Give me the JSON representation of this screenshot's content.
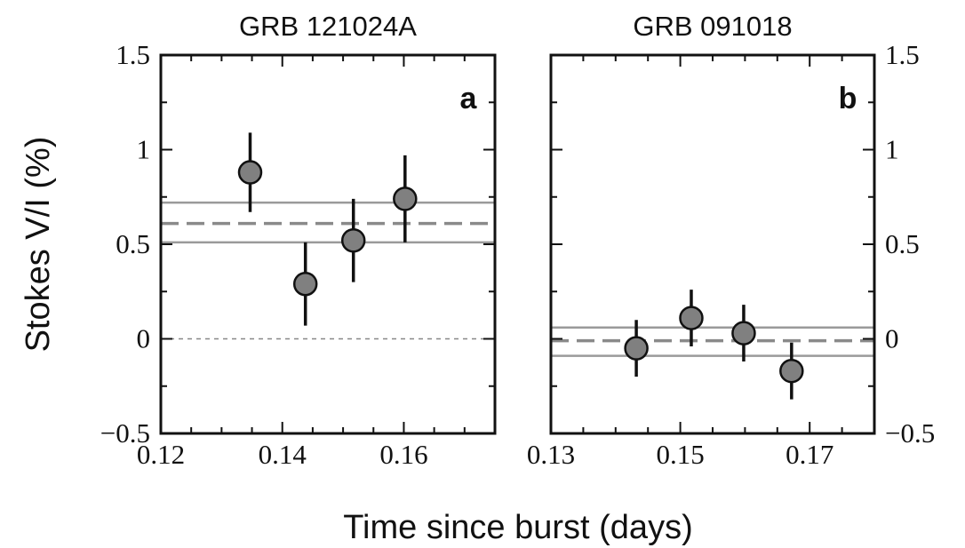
{
  "colors": {
    "marker_fill": "#808080",
    "reference_line": "#9a9a9a",
    "mean_line": "#8a8a8a",
    "zero_line": "#888888",
    "axes": "#111111"
  },
  "ylabel": "Stokes V/I (%)",
  "xlabel": "Time since burst (days)",
  "chart_data": [
    {
      "type": "scatter",
      "title": "GRB 121024A",
      "panel_label": "a",
      "xlim": [
        0.12,
        0.175
      ],
      "ylim": [
        -0.5,
        1.5
      ],
      "x_ticks": [
        "0.12",
        "0.14",
        "0.16"
      ],
      "x_tick_values": [
        0.12,
        0.14,
        0.16
      ],
      "x_minor_ticks": [
        0.125,
        0.13,
        0.135,
        0.145,
        0.15,
        0.155,
        0.165,
        0.17
      ],
      "y_ticks": [
        "−0.5",
        "0",
        "0.5",
        "1",
        "1.5"
      ],
      "y_tick_values": [
        -0.5,
        0,
        0.5,
        1,
        1.5
      ],
      "y_minor_ticks": [
        -0.25,
        0.25,
        0.75,
        1.25
      ],
      "y_ticks_side": "left",
      "zero_line": true,
      "mean": 0.61,
      "band": [
        0.51,
        0.72
      ],
      "points": [
        {
          "x": 0.1347,
          "y": 0.88,
          "err": 0.21
        },
        {
          "x": 0.1438,
          "y": 0.29,
          "err": 0.22
        },
        {
          "x": 0.1517,
          "y": 0.52,
          "err": 0.22
        },
        {
          "x": 0.1602,
          "y": 0.74,
          "err": 0.23
        }
      ]
    },
    {
      "type": "scatter",
      "title": "GRB 091018",
      "panel_label": "b",
      "xlim": [
        0.13,
        0.18
      ],
      "ylim": [
        -0.5,
        1.5
      ],
      "x_ticks": [
        "0.13",
        "0.15",
        "0.17"
      ],
      "x_tick_values": [
        0.13,
        0.15,
        0.17
      ],
      "x_minor_ticks": [
        0.135,
        0.14,
        0.145,
        0.155,
        0.16,
        0.165,
        0.175
      ],
      "y_ticks": [
        "−0.5",
        "0",
        "0.5",
        "1",
        "1.5"
      ],
      "y_tick_values": [
        -0.5,
        0,
        0.5,
        1,
        1.5
      ],
      "y_minor_ticks": [
        -0.25,
        0.25,
        0.75,
        1.25
      ],
      "y_ticks_side": "right",
      "zero_line": false,
      "mean": -0.01,
      "band": [
        -0.09,
        0.06
      ],
      "points": [
        {
          "x": 0.1432,
          "y": -0.05,
          "err": 0.15
        },
        {
          "x": 0.1517,
          "y": 0.11,
          "err": 0.15
        },
        {
          "x": 0.1598,
          "y": 0.03,
          "err": 0.15
        },
        {
          "x": 0.1672,
          "y": -0.17,
          "err": 0.15
        }
      ]
    }
  ]
}
